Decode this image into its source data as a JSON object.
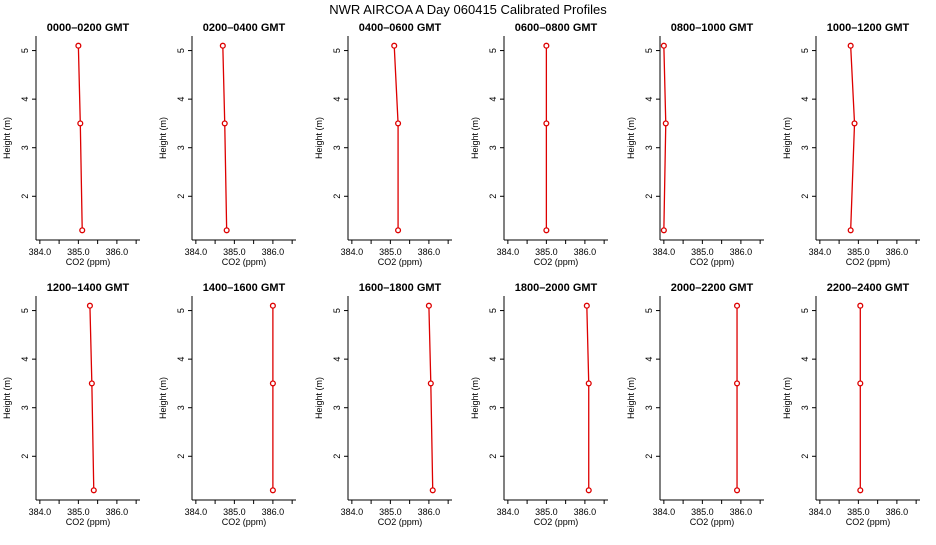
{
  "title": "NWR AIRCOA A  Day 060415  Calibrated Profiles",
  "colors": {
    "series": "#dd0000",
    "axis": "#000000",
    "background": "#ffffff"
  },
  "axes": {
    "xlabel": "CO2 (ppm)",
    "ylabel": "Height (m)",
    "xlim": [
      383.9,
      386.6
    ],
    "ylim": [
      1.1,
      5.3
    ],
    "xticks": [
      384.0,
      385.0,
      386.0
    ],
    "xtick_labels": [
      "384.0",
      "385.0",
      "386.0"
    ],
    "xticks_minor": [
      384.5,
      385.5,
      386.5
    ],
    "yticks": [
      2,
      3,
      4,
      5
    ],
    "ytick_labels": [
      "2",
      "3",
      "4",
      "5"
    ],
    "grid": false
  },
  "chart_data": [
    {
      "type": "line",
      "title": "0000–0200 GMT",
      "marker": "circle",
      "x": [
        385.1,
        385.05,
        385.0
      ],
      "y": [
        1.3,
        3.5,
        5.1
      ]
    },
    {
      "type": "line",
      "title": "0200–0400 GMT",
      "marker": "circle",
      "x": [
        384.8,
        384.75,
        384.7
      ],
      "y": [
        1.3,
        3.5,
        5.1
      ]
    },
    {
      "type": "line",
      "title": "0400–0600 GMT",
      "marker": "circle",
      "x": [
        385.2,
        385.2,
        385.1
      ],
      "y": [
        1.3,
        3.5,
        5.1
      ]
    },
    {
      "type": "line",
      "title": "0600–0800 GMT",
      "marker": "circle",
      "x": [
        385.0,
        385.0,
        385.0
      ],
      "y": [
        1.3,
        3.5,
        5.1
      ]
    },
    {
      "type": "line",
      "title": "0800–1000 GMT",
      "marker": "circle",
      "x": [
        384.0,
        384.05,
        384.0
      ],
      "y": [
        1.3,
        3.5,
        5.1
      ]
    },
    {
      "type": "line",
      "title": "1000–1200 GMT",
      "marker": "circle",
      "x": [
        384.8,
        384.9,
        384.8
      ],
      "y": [
        1.3,
        3.5,
        5.1
      ]
    },
    {
      "type": "line",
      "title": "1200–1400 GMT",
      "marker": "circle",
      "x": [
        385.4,
        385.35,
        385.3
      ],
      "y": [
        1.3,
        3.5,
        5.1
      ]
    },
    {
      "type": "line",
      "title": "1400–1600 GMT",
      "marker": "circle",
      "x": [
        386.0,
        386.0,
        386.0
      ],
      "y": [
        1.3,
        3.5,
        5.1
      ]
    },
    {
      "type": "line",
      "title": "1600–1800 GMT",
      "marker": "circle",
      "x": [
        386.1,
        386.05,
        386.0
      ],
      "y": [
        1.3,
        3.5,
        5.1
      ]
    },
    {
      "type": "line",
      "title": "1800–2000 GMT",
      "marker": "circle",
      "x": [
        386.1,
        386.1,
        386.05
      ],
      "y": [
        1.3,
        3.5,
        5.1
      ]
    },
    {
      "type": "line",
      "title": "2000–2200 GMT",
      "marker": "circle",
      "x": [
        385.9,
        385.9,
        385.9
      ],
      "y": [
        1.3,
        3.5,
        5.1
      ]
    },
    {
      "type": "line",
      "title": "2200–2400 GMT",
      "marker": "circle",
      "x": [
        385.05,
        385.05,
        385.05
      ],
      "y": [
        1.3,
        3.5,
        5.1
      ]
    }
  ]
}
